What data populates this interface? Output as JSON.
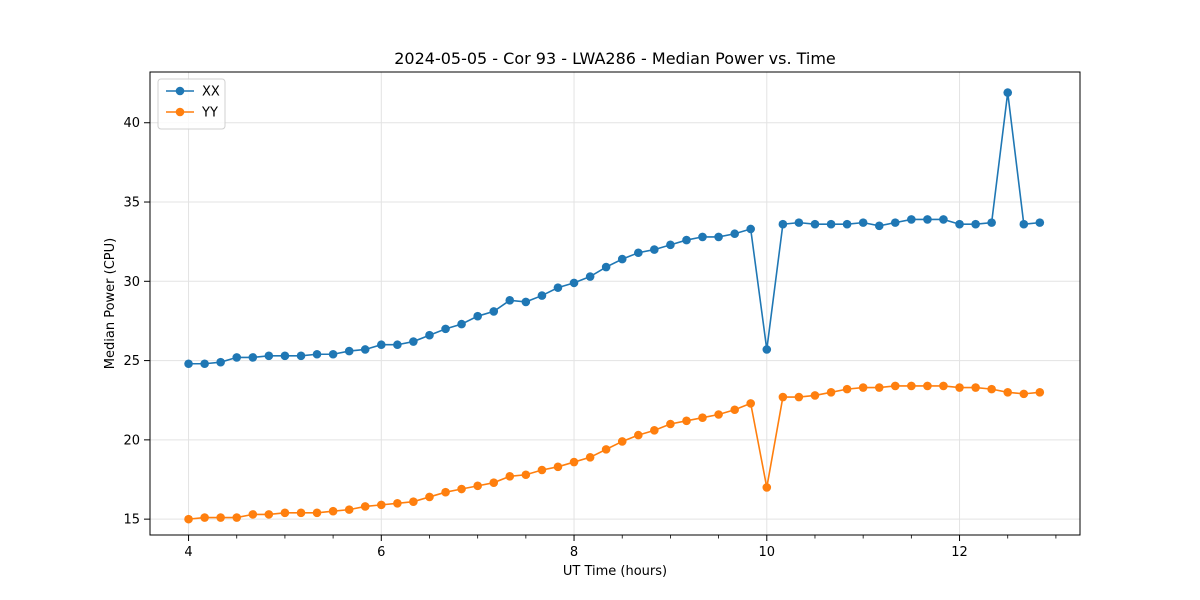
{
  "chart_data": {
    "type": "line",
    "title": "2024-05-05 - Cor 93 - LWA286 - Median Power vs. Time",
    "xlabel": "UT Time (hours)",
    "ylabel": "Median Power (CPU)",
    "xlim": [
      3.6,
      13.25
    ],
    "ylim": [
      14.0,
      43.2
    ],
    "xticks": [
      4,
      6,
      8,
      10,
      12
    ],
    "yticks": [
      15,
      20,
      25,
      30,
      35,
      40
    ],
    "grid": true,
    "legend_position": "top-left",
    "series": [
      {
        "name": "XX",
        "color": "#1f77b4",
        "x": [
          4.0,
          4.167,
          4.333,
          4.5,
          4.667,
          4.833,
          5.0,
          5.167,
          5.333,
          5.5,
          5.667,
          5.833,
          6.0,
          6.167,
          6.333,
          6.5,
          6.667,
          6.833,
          7.0,
          7.167,
          7.333,
          7.5,
          7.667,
          7.833,
          8.0,
          8.167,
          8.333,
          8.5,
          8.667,
          8.833,
          9.0,
          9.167,
          9.333,
          9.5,
          9.667,
          9.833,
          10.0,
          10.167,
          10.333,
          10.5,
          10.667,
          10.833,
          11.0,
          11.167,
          11.333,
          11.5,
          11.667,
          11.833,
          12.0,
          12.167,
          12.333,
          12.5,
          12.667,
          12.833
        ],
        "values": [
          24.8,
          24.8,
          24.9,
          25.2,
          25.2,
          25.3,
          25.3,
          25.3,
          25.4,
          25.4,
          25.6,
          25.7,
          26.0,
          26.0,
          26.2,
          26.6,
          27.0,
          27.3,
          27.8,
          28.1,
          28.8,
          28.7,
          29.1,
          29.6,
          29.9,
          30.3,
          30.9,
          31.4,
          31.8,
          32.0,
          32.3,
          32.6,
          32.8,
          32.8,
          33.0,
          33.3,
          25.7,
          33.6,
          33.7,
          33.6,
          33.6,
          33.6,
          33.7,
          33.5,
          33.7,
          33.9,
          33.9,
          33.9,
          33.6,
          33.6,
          33.7,
          41.9,
          33.6,
          33.7
        ]
      },
      {
        "name": "YY",
        "color": "#ff7f0e",
        "x": [
          4.0,
          4.167,
          4.333,
          4.5,
          4.667,
          4.833,
          5.0,
          5.167,
          5.333,
          5.5,
          5.667,
          5.833,
          6.0,
          6.167,
          6.333,
          6.5,
          6.667,
          6.833,
          7.0,
          7.167,
          7.333,
          7.5,
          7.667,
          7.833,
          8.0,
          8.167,
          8.333,
          8.5,
          8.667,
          8.833,
          9.0,
          9.167,
          9.333,
          9.5,
          9.667,
          9.833,
          10.0,
          10.167,
          10.333,
          10.5,
          10.667,
          10.833,
          11.0,
          11.167,
          11.333,
          11.5,
          11.667,
          11.833,
          12.0,
          12.167,
          12.333,
          12.5,
          12.667,
          12.833
        ],
        "values": [
          15.0,
          15.1,
          15.1,
          15.1,
          15.3,
          15.3,
          15.4,
          15.4,
          15.4,
          15.5,
          15.6,
          15.8,
          15.9,
          16.0,
          16.1,
          16.4,
          16.7,
          16.9,
          17.1,
          17.3,
          17.7,
          17.8,
          18.1,
          18.3,
          18.6,
          18.9,
          19.4,
          19.9,
          20.3,
          20.6,
          21.0,
          21.2,
          21.4,
          21.6,
          21.9,
          22.3,
          17.0,
          22.7,
          22.7,
          22.8,
          23.0,
          23.2,
          23.3,
          23.3,
          23.4,
          23.4,
          23.4,
          23.4,
          23.3,
          23.3,
          23.2,
          23.0,
          22.9,
          23.0
        ]
      }
    ]
  }
}
